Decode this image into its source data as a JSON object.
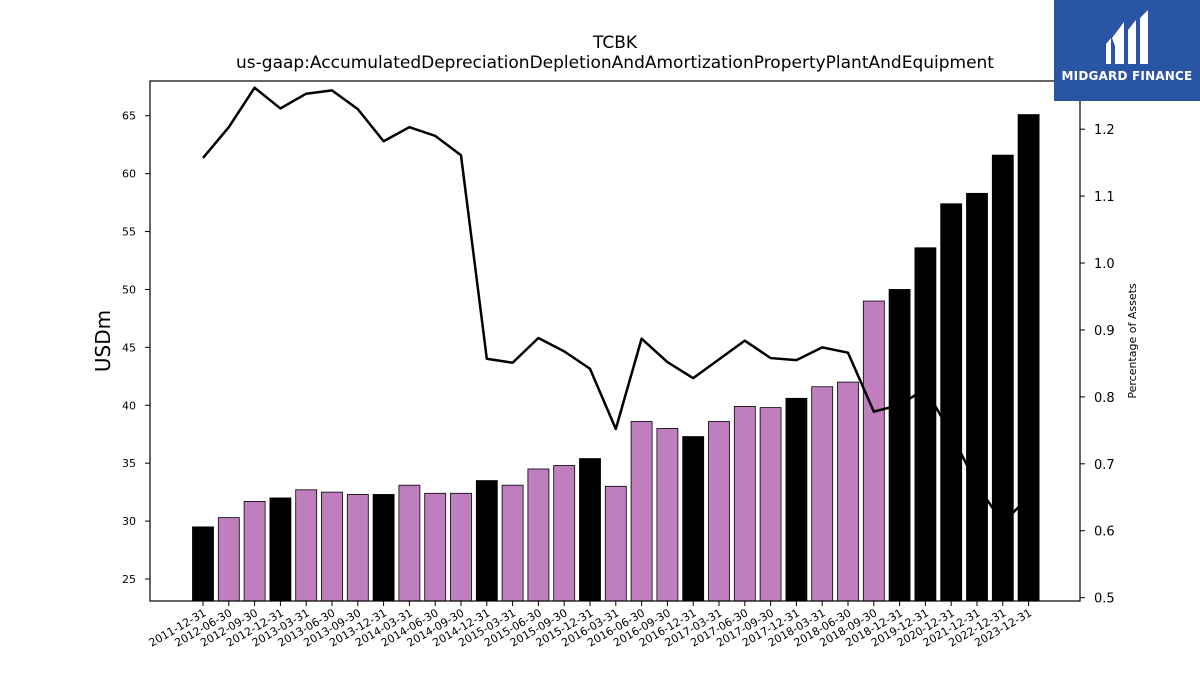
{
  "title": "TCBK",
  "subtitle": "us-gaap:AccumulatedDepreciationDepletionAndAmortizationPropertyPlantAndEquipment",
  "logo": {
    "text": "MIDGARD FINANCE",
    "icon": "midgard-logo-icon",
    "bg_color": "#2a55a6"
  },
  "chart_data": {
    "type": "bar",
    "categories": [
      "2011-12-31",
      "2012-06-30",
      "2012-09-30",
      "2012-12-31",
      "2013-03-31",
      "2013-06-30",
      "2013-09-30",
      "2013-12-31",
      "2014-03-31",
      "2014-06-30",
      "2014-09-30",
      "2014-12-31",
      "2015-03-31",
      "2015-06-30",
      "2015-09-30",
      "2015-12-31",
      "2016-03-31",
      "2016-06-30",
      "2016-09-30",
      "2016-12-31",
      "2017-03-31",
      "2017-06-30",
      "2017-09-30",
      "2017-12-31",
      "2018-03-31",
      "2018-06-30",
      "2018-09-30",
      "2018-12-31",
      "2019-12-31",
      "2020-12-31",
      "2021-12-31",
      "2022-12-31",
      "2023-12-31"
    ],
    "values": [
      29.5,
      30.3,
      31.7,
      32.0,
      32.7,
      32.5,
      32.3,
      32.3,
      33.1,
      32.4,
      32.4,
      33.5,
      33.1,
      34.5,
      34.8,
      35.4,
      33.0,
      38.6,
      38.0,
      37.3,
      38.6,
      39.9,
      39.8,
      40.6,
      41.6,
      42.0,
      49.0,
      50.0,
      53.6,
      57.4,
      58.3,
      61.6,
      65.1
    ],
    "bar_colors": [
      "#000000",
      "#bf7fbf",
      "#bf7fbf",
      "#000000",
      "#bf7fbf",
      "#bf7fbf",
      "#bf7fbf",
      "#000000",
      "#bf7fbf",
      "#bf7fbf",
      "#bf7fbf",
      "#000000",
      "#bf7fbf",
      "#bf7fbf",
      "#bf7fbf",
      "#000000",
      "#bf7fbf",
      "#bf7fbf",
      "#bf7fbf",
      "#000000",
      "#bf7fbf",
      "#bf7fbf",
      "#bf7fbf",
      "#000000",
      "#bf7fbf",
      "#bf7fbf",
      "#bf7fbf",
      "#000000",
      "#000000",
      "#000000",
      "#000000",
      "#000000",
      "#000000"
    ],
    "line_series": {
      "axis": "right",
      "color": "#000000",
      "values": [
        1.157,
        1.203,
        1.262,
        1.231,
        1.253,
        1.258,
        1.23,
        1.182,
        1.203,
        1.19,
        1.161,
        0.857,
        0.851,
        0.888,
        0.868,
        0.842,
        0.752,
        0.887,
        0.852,
        0.828,
        0.856,
        0.884,
        0.858,
        0.855,
        0.874,
        0.866,
        0.778,
        0.788,
        0.812,
        0.745,
        0.668,
        0.612,
        0.65
      ]
    },
    "ylabel": "USDm",
    "y2label": "Percentage of Assets",
    "ylim": [
      23.1,
      68.0
    ],
    "y2lim": [
      0.495,
      1.272
    ],
    "yticks": [
      25,
      30,
      35,
      40,
      45,
      50,
      55,
      60,
      65
    ],
    "y2ticks": [
      0.5,
      0.6,
      0.7,
      0.8,
      0.9,
      1.0,
      1.1,
      1.2
    ],
    "y2tick_labels": [
      "0.5",
      "0.6",
      "0.7",
      "0.8",
      "0.9",
      "1.0",
      "1.1",
      "1.2"
    ],
    "grid": false
  }
}
